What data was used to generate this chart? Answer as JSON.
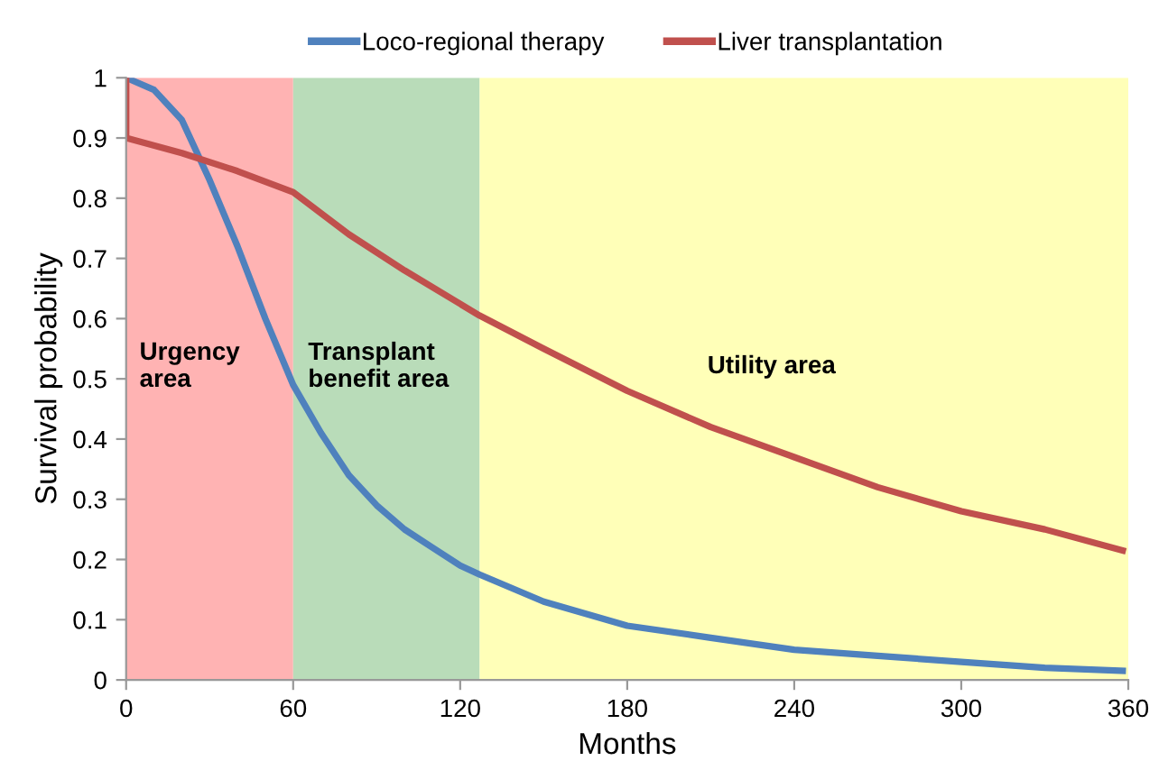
{
  "chart_data": {
    "type": "line",
    "xlabel": "Months",
    "ylabel": "Survival probability",
    "xlim": [
      0,
      360
    ],
    "ylim": [
      0,
      1
    ],
    "xticks": [
      0,
      60,
      120,
      180,
      240,
      300,
      360
    ],
    "yticks": [
      0,
      0.1,
      0.2,
      0.3,
      0.4,
      0.5,
      0.6,
      0.7,
      0.8,
      0.9,
      1
    ],
    "grid": false,
    "legend": "top",
    "marker": "none",
    "line_style": "solid",
    "bands": [
      {
        "axis": "x",
        "from": 0,
        "to": 60,
        "label": "Urgency\narea",
        "color": "#ffb3b3"
      },
      {
        "axis": "x",
        "from": 60,
        "to": 127,
        "label": "Transplant\nbenefit area",
        "color": "#b9dcb9"
      },
      {
        "axis": "x",
        "from": 127,
        "to": 360,
        "label": "Utility area",
        "color": "#ffffb8"
      }
    ],
    "series": [
      {
        "name": "Loco-regional therapy",
        "color": "#4f81bd",
        "x": [
          0,
          10,
          20,
          30,
          40,
          50,
          60,
          70,
          80,
          90,
          100,
          110,
          120,
          127,
          150,
          180,
          210,
          240,
          270,
          300,
          330,
          358
        ],
        "values": [
          1.0,
          0.98,
          0.93,
          0.83,
          0.72,
          0.6,
          0.49,
          0.41,
          0.34,
          0.29,
          0.25,
          0.22,
          0.19,
          0.175,
          0.13,
          0.09,
          0.07,
          0.05,
          0.04,
          0.03,
          0.02,
          0.015
        ]
      },
      {
        "name": "Liver transplantation",
        "color": "#c0504d",
        "x": [
          0,
          0,
          20,
          40,
          60,
          80,
          100,
          127,
          150,
          180,
          210,
          240,
          270,
          300,
          330,
          358
        ],
        "values": [
          1.0,
          0.9,
          0.875,
          0.845,
          0.81,
          0.74,
          0.68,
          0.605,
          0.55,
          0.48,
          0.42,
          0.37,
          0.32,
          0.28,
          0.25,
          0.215
        ]
      }
    ]
  }
}
